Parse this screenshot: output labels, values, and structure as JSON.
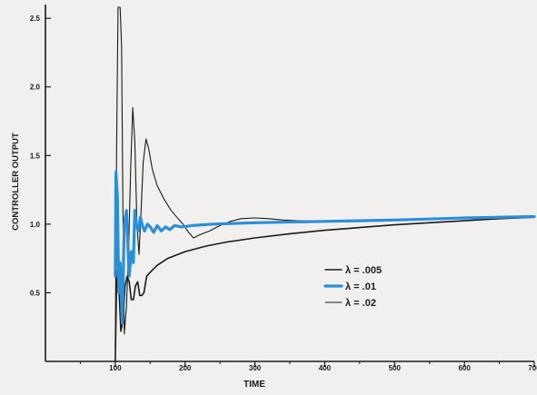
{
  "colors": {
    "background": "#f2f0ef",
    "axis": "#1a1a1a",
    "blue": "#2a8fd6",
    "black": "#1a1a1a"
  },
  "chart_data": {
    "type": "line",
    "xlabel": "TIME",
    "ylabel": "CONTROLLER OUTPUT",
    "xlim": [
      0,
      700
    ],
    "ylim": [
      0,
      2.6
    ],
    "x_ticks": [
      100,
      200,
      300,
      400,
      500,
      600,
      700
    ],
    "x_tick_labels": [
      "100",
      "200",
      "300",
      "400",
      "500",
      "600",
      "700"
    ],
    "y_ticks": [
      0.5,
      1.0,
      1.5,
      2.0,
      2.5
    ],
    "y_tick_labels": [
      "0.5",
      "1.0",
      "1.5",
      "2.0",
      "2.5"
    ],
    "legend": [
      {
        "label": "λ = .005",
        "color": "#1a1a1a",
        "style": "medium"
      },
      {
        "label": "λ = .01",
        "color": "#2a8fd6",
        "style": "thick"
      },
      {
        "label": "λ = .02",
        "color": "#1a1a1a",
        "style": "thin"
      }
    ],
    "series": [
      {
        "color": "#1a1a1a",
        "style": "medium",
        "points": [
          [
            100,
            0.0
          ],
          [
            101,
            0.3
          ],
          [
            102,
            0.62
          ],
          [
            104,
            0.68
          ],
          [
            106,
            0.45
          ],
          [
            108,
            0.22
          ],
          [
            111,
            0.3
          ],
          [
            114,
            0.55
          ],
          [
            117,
            0.62
          ],
          [
            120,
            0.58
          ],
          [
            123,
            0.45
          ],
          [
            126,
            0.45
          ],
          [
            129,
            0.55
          ],
          [
            132,
            0.58
          ],
          [
            135,
            0.48
          ],
          [
            138,
            0.48
          ],
          [
            141,
            0.5
          ],
          [
            145,
            0.62
          ],
          [
            150,
            0.65
          ],
          [
            160,
            0.7
          ],
          [
            175,
            0.75
          ],
          [
            200,
            0.8
          ],
          [
            230,
            0.84
          ],
          [
            260,
            0.87
          ],
          [
            300,
            0.9
          ],
          [
            350,
            0.93
          ],
          [
            400,
            0.955
          ],
          [
            450,
            0.975
          ],
          [
            500,
            0.995
          ],
          [
            550,
            1.01
          ],
          [
            600,
            1.025
          ],
          [
            650,
            1.04
          ],
          [
            700,
            1.05
          ]
        ]
      },
      {
        "color": "#1a1a1a",
        "style": "thin",
        "points": [
          [
            100,
            0.1
          ],
          [
            102,
            1.6
          ],
          [
            104,
            2.58
          ],
          [
            107,
            2.58
          ],
          [
            109,
            2.3
          ],
          [
            111,
            1.1
          ],
          [
            113,
            0.2
          ],
          [
            116,
            0.4
          ],
          [
            119,
            0.8
          ],
          [
            122,
            1.4
          ],
          [
            125,
            1.85
          ],
          [
            128,
            1.6
          ],
          [
            131,
            1.0
          ],
          [
            134,
            0.78
          ],
          [
            137,
            1.1
          ],
          [
            140,
            1.45
          ],
          [
            144,
            1.62
          ],
          [
            148,
            1.55
          ],
          [
            153,
            1.4
          ],
          [
            160,
            1.28
          ],
          [
            170,
            1.18
          ],
          [
            180,
            1.1
          ],
          [
            190,
            1.04
          ],
          [
            197,
            1.0
          ],
          [
            205,
            0.94
          ],
          [
            212,
            0.9
          ],
          [
            220,
            0.92
          ],
          [
            235,
            0.95
          ],
          [
            250,
            0.99
          ],
          [
            265,
            1.02
          ],
          [
            280,
            1.04
          ],
          [
            300,
            1.045
          ],
          [
            320,
            1.04
          ],
          [
            340,
            1.03
          ],
          [
            360,
            1.025
          ],
          [
            400,
            1.02
          ],
          [
            450,
            1.025
          ],
          [
            500,
            1.03
          ],
          [
            550,
            1.04
          ],
          [
            600,
            1.05
          ],
          [
            650,
            1.05
          ],
          [
            700,
            1.05
          ]
        ]
      },
      {
        "color": "#2a8fd6",
        "style": "thick",
        "points": [
          [
            100,
            0.62
          ],
          [
            101,
            1.38
          ],
          [
            103,
            1.2
          ],
          [
            105,
            0.5
          ],
          [
            107,
            0.72
          ],
          [
            110,
            0.28
          ],
          [
            113,
            1.0
          ],
          [
            116,
            1.1
          ],
          [
            120,
            0.62
          ],
          [
            123,
            0.8
          ],
          [
            126,
            0.72
          ],
          [
            128,
            1.1
          ],
          [
            130,
            1.0
          ],
          [
            133,
            0.95
          ],
          [
            136,
            1.05
          ],
          [
            139,
            0.99
          ],
          [
            142,
            0.95
          ],
          [
            146,
            1.0
          ],
          [
            150,
            0.98
          ],
          [
            155,
            0.94
          ],
          [
            160,
            0.99
          ],
          [
            166,
            0.95
          ],
          [
            172,
            0.98
          ],
          [
            178,
            0.96
          ],
          [
            185,
            0.99
          ],
          [
            195,
            0.98
          ],
          [
            210,
            0.99
          ],
          [
            240,
            1.0
          ],
          [
            300,
            1.01
          ],
          [
            400,
            1.02
          ],
          [
            500,
            1.03
          ],
          [
            600,
            1.045
          ],
          [
            700,
            1.055
          ]
        ]
      }
    ]
  }
}
